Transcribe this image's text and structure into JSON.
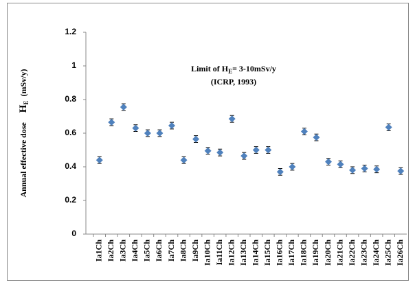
{
  "chart_data": {
    "type": "scatter",
    "y_label": "Annual effective dose",
    "y_label_symbol": "H",
    "y_label_subscript": "E",
    "y_label_unit": "(mSv/y)",
    "annotation": {
      "line1_start": "Limit of H",
      "line1_subscript": "E",
      "line1_end": "= 3-10mSv/y",
      "line2": "(ICRP, 1993)"
    },
    "categories": [
      "Ia1Ch",
      "Ia2Ch",
      "Ia3Ch",
      "Ia4Ch",
      "Ia5Ch",
      "Ia6Ch",
      "Ia7Ch",
      "Ia8Ch",
      "Ia9Ch",
      "Ia10Ch",
      "Ia11Ch",
      "Ia12Ch",
      "Ia13Ch",
      "Ia14Ch",
      "Ia15Ch",
      "Ia16Ch",
      "Ia17Ch",
      "Ia18Ch",
      "Ia19Ch",
      "Ia20Ch",
      "Ia21Ch",
      "Ia22Ch",
      "Ia23Ch",
      "Ia24Ch",
      "Ia25Ch",
      "Ia26Ch"
    ],
    "values": [
      0.44,
      0.665,
      0.755,
      0.63,
      0.6,
      0.6,
      0.645,
      0.44,
      0.565,
      0.495,
      0.485,
      0.685,
      0.465,
      0.5,
      0.5,
      0.37,
      0.4,
      0.61,
      0.575,
      0.43,
      0.415,
      0.38,
      0.39,
      0.385,
      0.635,
      0.375
    ],
    "errors": [
      0.02,
      0.02,
      0.02,
      0.02,
      0.02,
      0.02,
      0.02,
      0.02,
      0.02,
      0.02,
      0.02,
      0.02,
      0.02,
      0.02,
      0.02,
      0.02,
      0.02,
      0.02,
      0.02,
      0.02,
      0.02,
      0.02,
      0.02,
      0.02,
      0.02,
      0.02
    ],
    "color": "#4f81bd",
    "ylim": [
      0,
      1.2
    ],
    "yticks": [
      0,
      0.2,
      0.4,
      0.6,
      0.8,
      1,
      1.2
    ],
    "grid": false
  }
}
